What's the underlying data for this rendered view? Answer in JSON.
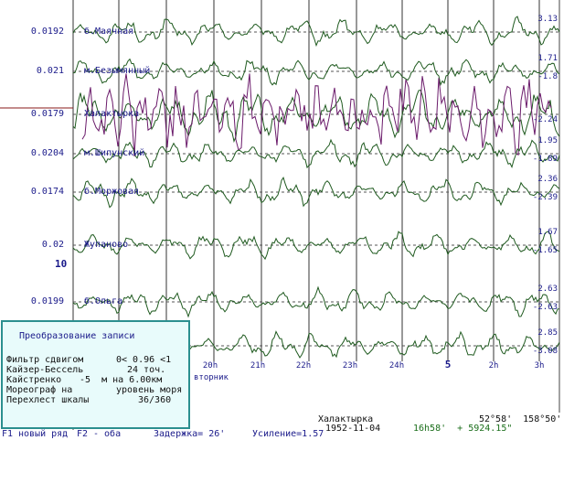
{
  "stations": [
    {
      "name": "б.Маячная",
      "scale": "0.0192",
      "ampl_top": "3.13",
      "ampl_bottom": ""
    },
    {
      "name": "м.Безымянный",
      "scale": "0.021",
      "ampl_top": "1.71",
      "ampl_bottom": "-1.8"
    },
    {
      "name": "Халактырка",
      "scale": "0.0179",
      "ampl_top": "",
      "ampl_bottom": "-2.24"
    },
    {
      "name": "м.Шипунский",
      "scale": "0.0204",
      "ampl_top": "1.95",
      "ampl_bottom": "-1.89"
    },
    {
      "name": "б.Моржовая",
      "scale": "0.0174",
      "ampl_top": "2.36",
      "ampl_bottom": "-2.39"
    },
    {
      "name": "Жупаново",
      "scale": "0.02",
      "ampl_top": "1.67",
      "ampl_bottom": "-1.65"
    },
    {
      "name": "б.Ольга",
      "scale": "0.0199",
      "ampl_top": "2.63",
      "ampl_bottom": "-2.63"
    },
    {
      "name": "",
      "scale": "",
      "ampl_top": "2.85",
      "ampl_bottom": "-3.08"
    }
  ],
  "day_marker_left": "10",
  "hours": [
    "20h",
    "21h",
    "22h",
    "23h",
    "24h",
    "5",
    "2h",
    "3h"
  ],
  "weekday": "вторник",
  "panel": {
    "title": "Преобразование записи",
    "rows": [
      {
        "label": "Фильтр сдвигом",
        "value": "0< 0.96 <1"
      },
      {
        "label": "Кайзер-Бессель",
        "value": "24 точ."
      },
      {
        "label": "Кайстренко",
        "value": "-5  м на 6.00км"
      },
      {
        "label": "Мореограф на",
        "value": "уровень моря"
      },
      {
        "label": "Перехлест шкалы",
        "value": "36/360"
      }
    ]
  },
  "info": {
    "station": "Халактырка",
    "coords": "52°58'  158°50'",
    "date": "1952-11-04",
    "time": "16h58'  + 5924.15\""
  },
  "fkeys": [
    {
      "key": "F1",
      "label": "новый ряд"
    },
    {
      "key": "F2",
      "label": "- оба"
    },
    {
      "key": "",
      "label": "Задержка= 26'"
    },
    {
      "key": "",
      "label": "Усиление=1.57"
    }
  ],
  "colors": {
    "trace": "#1f5a1f",
    "highlight_trace": "#6a1a6a",
    "grid": "#333333",
    "panel_bg": "#e8fbfb",
    "panel_border": "#2b8f8f"
  }
}
